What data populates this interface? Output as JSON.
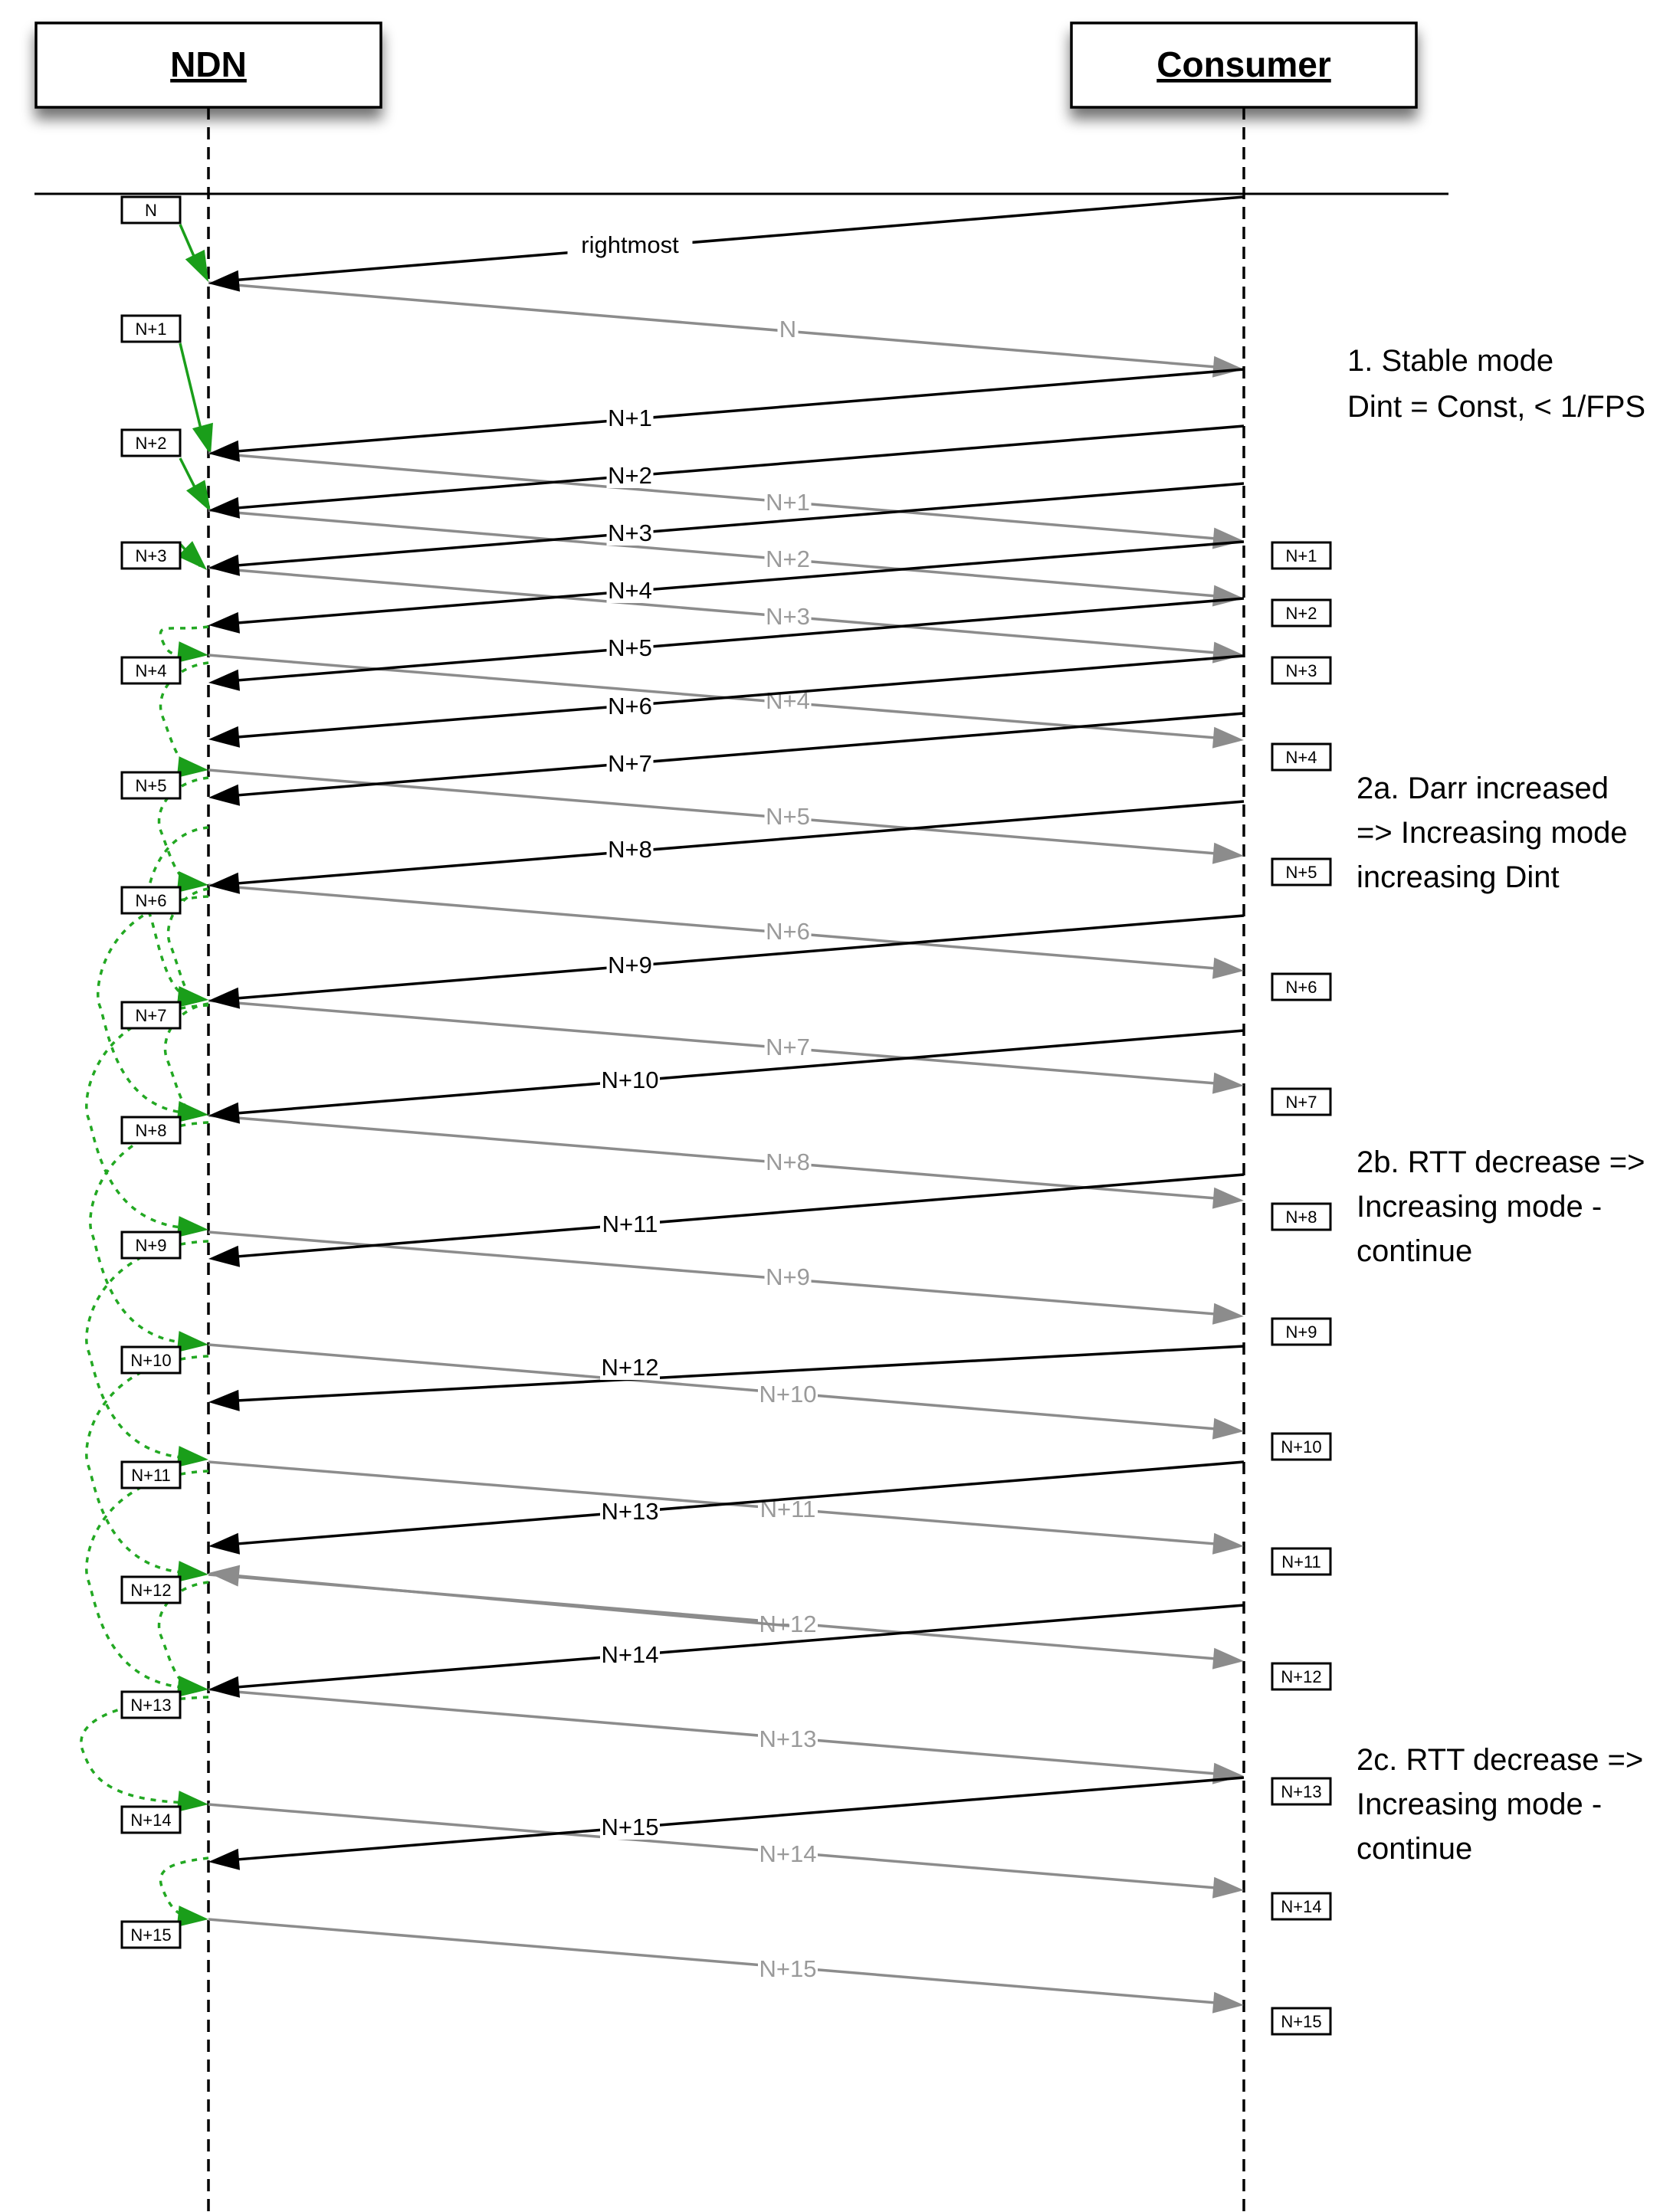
{
  "actors": {
    "ndn": "NDN",
    "consumer": "Consumer"
  },
  "first_interest_label": "rightmost",
  "ndn_markers": [
    "N",
    "N+1",
    "N+2",
    "N+3",
    "N+4",
    "N+5",
    "N+6",
    "N+7",
    "N+8",
    "N+9",
    "N+10",
    "N+11",
    "N+12",
    "N+13",
    "N+14",
    "N+15"
  ],
  "consumer_markers": [
    "N+1",
    "N+2",
    "N+3",
    "N+4",
    "N+5",
    "N+6",
    "N+7",
    "N+8",
    "N+9",
    "N+10",
    "N+11",
    "N+12",
    "N+13",
    "N+14",
    "N+15"
  ],
  "interests": [
    "N+1",
    "N+2",
    "N+3",
    "N+4",
    "N+5",
    "N+6",
    "N+7",
    "N+8",
    "N+9",
    "N+10",
    "N+11",
    "N+12",
    "N+13",
    "N+14",
    "N+15"
  ],
  "data_packets": [
    "N",
    "N+1",
    "N+2",
    "N+3",
    "N+4",
    "N+5",
    "N+6",
    "N+7",
    "N+8",
    "N+9",
    "N+10",
    "N+11",
    "N+12",
    "N+13",
    "N+14",
    "N+15"
  ],
  "notes": [
    {
      "lines": [
        "1. Stable mode",
        "Dint = Const, < 1/FPS"
      ]
    },
    {
      "lines": [
        "2a. Darr increased",
        "=> Increasing mode",
        "increasing Dint"
      ]
    },
    {
      "lines": [
        "2b. RTT decrease =>",
        "Increasing mode -",
        "continue"
      ]
    },
    {
      "lines": [
        "2c. RTT decrease =>",
        "Increasing mode -",
        "continue"
      ]
    }
  ],
  "colors": {
    "interest": "#000000",
    "data": "#8c8c8c",
    "schedule": "#1a9e1a"
  }
}
